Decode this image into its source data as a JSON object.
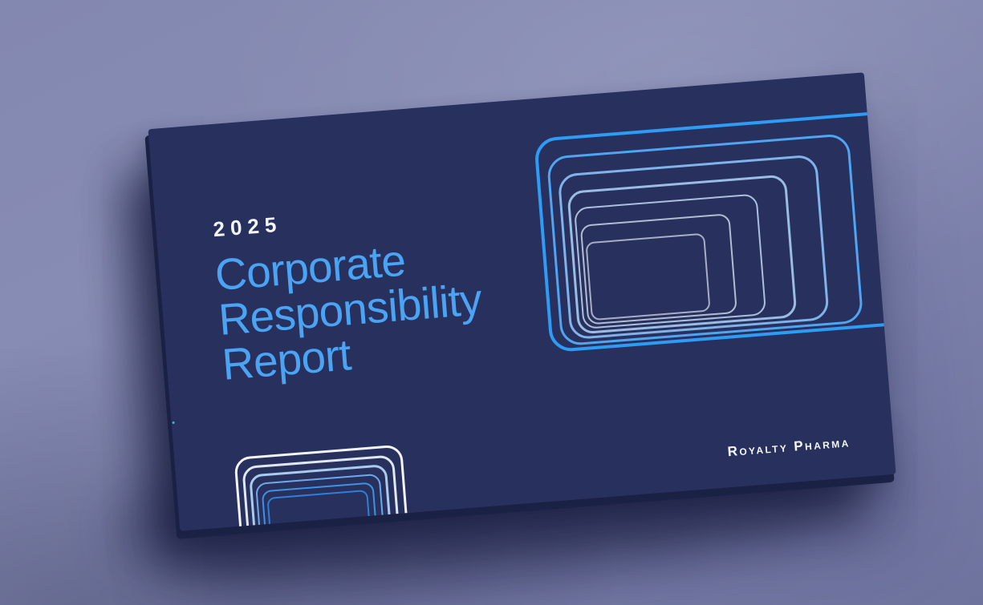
{
  "card": {
    "year": "2025",
    "title_lines": [
      "Corporate",
      "Responsibility",
      "Report"
    ],
    "brand": "Royalty Pharma",
    "colors": {
      "background": "#7E83AD",
      "card_bg": "#28305E",
      "card_back": "#1C2447",
      "title_blue": "#4AA3F3",
      "year_white": "#F2F5FA",
      "brand_white": "#F4F7FB"
    }
  },
  "decor": {
    "right_tunnel": {
      "name": "nested-rounded-rectangles",
      "colors": [
        "#2E9BF5",
        "#4FA5F1",
        "#7FB3EA",
        "#9ABDE4",
        "#ABC0DC",
        "#B0BED2",
        "#A7AEC6"
      ]
    },
    "left_tunnel": {
      "name": "nested-rounded-rectangles",
      "colors": [
        "#F3F6F9",
        "#DFE8F1",
        "#A8CBEE",
        "#6FAAE8",
        "#3F92E2",
        "#2E7FD6"
      ]
    }
  }
}
